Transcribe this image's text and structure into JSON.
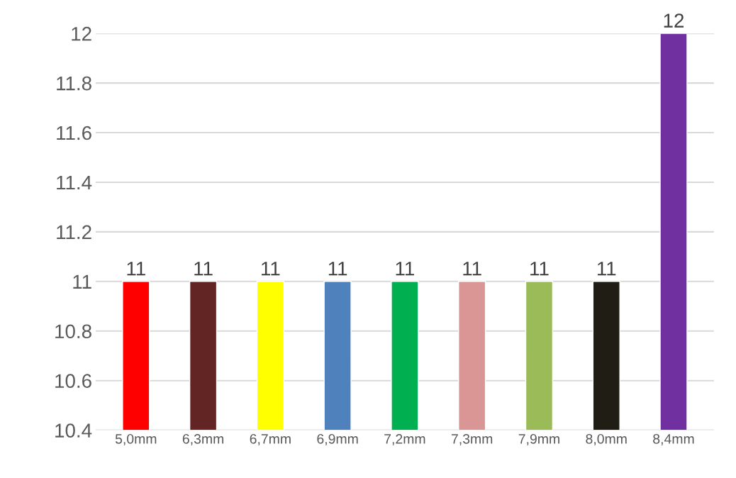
{
  "chart_data": {
    "type": "bar",
    "categories": [
      "5,0mm",
      "6,3mm",
      "6,7mm",
      "6,9mm",
      "7,2mm",
      "7,3mm",
      "7,9mm",
      "8,0mm",
      "8,4mm"
    ],
    "values": [
      11,
      11,
      11,
      11,
      11,
      11,
      11,
      11,
      12
    ],
    "colors": [
      "#ff0000",
      "#632523",
      "#ffff00",
      "#4f81bd",
      "#00b050",
      "#d99694",
      "#9bbb59",
      "#1f1d14",
      "#7030a0"
    ],
    "ylim": [
      10.4,
      12
    ],
    "yticks": [
      10.4,
      10.6,
      10.8,
      11,
      11.2,
      11.4,
      11.6,
      11.8,
      12
    ],
    "grid": "y",
    "data_labels": true
  }
}
